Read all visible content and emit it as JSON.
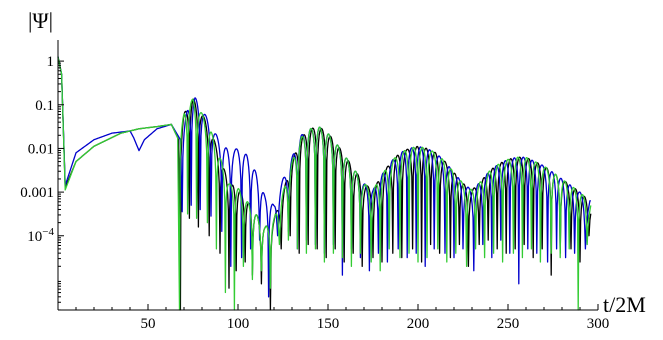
{
  "chart_data": {
    "type": "line",
    "title": "",
    "xlabel": "t/2M",
    "ylabel": "|Ψ|",
    "xlim": [
      0,
      300
    ],
    "ylim_log10": [
      -5.7,
      0.3
    ],
    "yscale": "log",
    "grid": false,
    "legend": "none",
    "x_ticks": [
      {
        "value": 50,
        "label": "50"
      },
      {
        "value": 100,
        "label": "100"
      },
      {
        "value": 150,
        "label": "150"
      },
      {
        "value": 200,
        "label": "200"
      },
      {
        "value": 250,
        "label": "250"
      },
      {
        "value": 300,
        "label": "300"
      }
    ],
    "y_ticks": [
      {
        "log10": 0,
        "label": "1"
      },
      {
        "log10": -1,
        "label": "0.1"
      },
      {
        "log10": -2,
        "label": "0.01"
      },
      {
        "log10": -3,
        "label": "0.001"
      },
      {
        "log10": -4,
        "label": "10^-4"
      }
    ],
    "series": [
      {
        "color": "#000000",
        "envelope": [
          [
            0,
            0.1
          ],
          [
            2,
            -0.3
          ],
          [
            4,
            -2.9
          ],
          [
            10,
            -2.3
          ],
          [
            20,
            -1.95
          ],
          [
            35,
            -1.65
          ],
          [
            45,
            -1.55
          ],
          [
            55,
            -1.5
          ],
          [
            63,
            -1.45
          ],
          [
            67,
            -1.8
          ],
          [
            70,
            -1.2
          ],
          [
            75,
            -0.85
          ],
          [
            80,
            -1.2
          ],
          [
            85,
            -1.6
          ],
          [
            90,
            -2.2
          ],
          [
            95,
            -2.8
          ],
          [
            100,
            -2.9
          ],
          [
            105,
            -3.2
          ],
          [
            110,
            -3.5
          ],
          [
            115,
            -3.8
          ],
          [
            120,
            -3.6
          ],
          [
            125,
            -3.0
          ],
          [
            130,
            -2.3
          ],
          [
            135,
            -1.75
          ],
          [
            140,
            -1.55
          ],
          [
            145,
            -1.5
          ],
          [
            150,
            -1.65
          ],
          [
            155,
            -1.9
          ],
          [
            160,
            -2.2
          ],
          [
            165,
            -2.5
          ],
          [
            170,
            -2.8
          ],
          [
            175,
            -2.95
          ],
          [
            180,
            -2.6
          ],
          [
            185,
            -2.3
          ],
          [
            190,
            -2.1
          ],
          [
            195,
            -2.0
          ],
          [
            200,
            -1.95
          ],
          [
            205,
            -2.0
          ],
          [
            210,
            -2.1
          ],
          [
            215,
            -2.3
          ],
          [
            220,
            -2.55
          ],
          [
            225,
            -2.8
          ],
          [
            230,
            -2.95
          ],
          [
            235,
            -2.75
          ],
          [
            240,
            -2.5
          ],
          [
            245,
            -2.35
          ],
          [
            250,
            -2.25
          ],
          [
            255,
            -2.2
          ],
          [
            260,
            -2.2
          ],
          [
            265,
            -2.3
          ],
          [
            270,
            -2.4
          ],
          [
            275,
            -2.55
          ],
          [
            280,
            -2.7
          ],
          [
            285,
            -2.85
          ],
          [
            290,
            -3.0
          ],
          [
            295,
            -3.2
          ]
        ],
        "minima": [
          [
            68,
            -6
          ],
          [
            73,
            -3.6
          ],
          [
            78,
            -3.8
          ],
          [
            84,
            -4.0
          ],
          [
            90,
            -4.4
          ],
          [
            95,
            -5.2
          ],
          [
            99,
            -4.8
          ],
          [
            104,
            -4.6
          ],
          [
            108,
            -4.9
          ],
          [
            113,
            -5.1
          ],
          [
            118,
            -6
          ],
          [
            124,
            -4.3
          ],
          [
            129,
            -4.0
          ],
          [
            134,
            -4.4
          ],
          [
            139,
            -4.2
          ],
          [
            144,
            -4.3
          ],
          [
            149,
            -4.5
          ],
          [
            154,
            -4.3
          ],
          [
            159,
            -4.6
          ],
          [
            164,
            -4.4
          ],
          [
            169,
            -4.7
          ],
          [
            175,
            -4.5
          ],
          [
            180,
            -4.6
          ],
          [
            186,
            -4.4
          ],
          [
            191,
            -4.5
          ],
          [
            197,
            -4.3
          ],
          [
            202,
            -4.6
          ],
          [
            207,
            -4.2
          ],
          [
            212,
            -4.4
          ],
          [
            218,
            -4.5
          ],
          [
            223,
            -4.2
          ],
          [
            228,
            -4.7
          ],
          [
            234,
            -4.2
          ],
          [
            239,
            -4.1
          ],
          [
            244,
            -4.3
          ],
          [
            249,
            -4.4
          ],
          [
            254,
            -4.3
          ],
          [
            259,
            -4.2
          ],
          [
            264,
            -4.5
          ],
          [
            269,
            -4.3
          ],
          [
            274,
            -4.9
          ],
          [
            279,
            -4.4
          ],
          [
            285,
            -4.3
          ],
          [
            290,
            -4.6
          ],
          [
            295,
            -4.0
          ]
        ]
      },
      {
        "color": "#0000cc",
        "envelope": [
          [
            0,
            0.1
          ],
          [
            2,
            -0.3
          ],
          [
            4,
            -2.85
          ],
          [
            10,
            -2.1
          ],
          [
            20,
            -1.8
          ],
          [
            30,
            -1.65
          ],
          [
            40,
            -1.6
          ],
          [
            42,
            -1.75
          ],
          [
            45,
            -2.05
          ],
          [
            48,
            -1.8
          ],
          [
            55,
            -1.55
          ],
          [
            63,
            -1.45
          ],
          [
            68,
            -1.8
          ],
          [
            72,
            -1.1
          ],
          [
            76,
            -0.82
          ],
          [
            80,
            -1.1
          ],
          [
            85,
            -1.45
          ],
          [
            90,
            -1.85
          ],
          [
            95,
            -2.05
          ],
          [
            100,
            -2.0
          ],
          [
            105,
            -2.15
          ],
          [
            110,
            -2.55
          ],
          [
            115,
            -3.1
          ],
          [
            120,
            -3.3
          ],
          [
            125,
            -2.7
          ],
          [
            130,
            -2.2
          ],
          [
            135,
            -1.7
          ],
          [
            140,
            -1.55
          ],
          [
            145,
            -1.5
          ],
          [
            150,
            -1.65
          ],
          [
            155,
            -1.9
          ],
          [
            160,
            -2.2
          ],
          [
            165,
            -2.5
          ],
          [
            170,
            -2.8
          ],
          [
            175,
            -2.95
          ],
          [
            180,
            -2.6
          ],
          [
            185,
            -2.3
          ],
          [
            190,
            -2.1
          ],
          [
            195,
            -2.0
          ],
          [
            200,
            -1.95
          ],
          [
            205,
            -2.0
          ],
          [
            210,
            -2.1
          ],
          [
            215,
            -2.3
          ],
          [
            220,
            -2.55
          ],
          [
            225,
            -2.8
          ],
          [
            230,
            -2.95
          ],
          [
            235,
            -2.75
          ],
          [
            240,
            -2.5
          ],
          [
            245,
            -2.35
          ],
          [
            250,
            -2.25
          ],
          [
            255,
            -2.2
          ],
          [
            260,
            -2.2
          ],
          [
            265,
            -2.3
          ],
          [
            270,
            -2.4
          ],
          [
            275,
            -2.55
          ],
          [
            280,
            -2.7
          ],
          [
            285,
            -2.85
          ],
          [
            290,
            -3.0
          ],
          [
            295,
            -3.2
          ]
        ],
        "minima": [
          [
            69,
            -3.45
          ],
          [
            74,
            -3.3
          ],
          [
            79,
            -3.4
          ],
          [
            85,
            -3.55
          ],
          [
            91,
            -3.9
          ],
          [
            96,
            -4.7
          ],
          [
            102,
            -4.5
          ],
          [
            107,
            -4.3
          ],
          [
            112,
            -4.1
          ],
          [
            117,
            -5.4
          ],
          [
            122,
            -4.0
          ],
          [
            128,
            -3.9
          ],
          [
            133,
            -4.3
          ],
          [
            138,
            -4.1
          ],
          [
            143,
            -4.2
          ],
          [
            148,
            -4.4
          ],
          [
            153,
            -4.2
          ],
          [
            158,
            -4.9
          ],
          [
            163,
            -4.3
          ],
          [
            168,
            -4.5
          ],
          [
            173,
            -4.8
          ],
          [
            178,
            -4.4
          ],
          [
            183,
            -4.6
          ],
          [
            189,
            -4.3
          ],
          [
            194,
            -4.5
          ],
          [
            199,
            -4.4
          ],
          [
            204,
            -4.7
          ],
          [
            209,
            -4.3
          ],
          [
            215,
            -4.4
          ],
          [
            220,
            -4.5
          ],
          [
            225,
            -4.3
          ],
          [
            231,
            -4.8
          ],
          [
            236,
            -4.2
          ],
          [
            241,
            -4.5
          ],
          [
            246,
            -4.1
          ],
          [
            251,
            -4.4
          ],
          [
            256,
            -5.1
          ],
          [
            261,
            -4.3
          ],
          [
            266,
            -4.4
          ],
          [
            272,
            -4.6
          ],
          [
            277,
            -4.3
          ],
          [
            282,
            -4.5
          ],
          [
            287,
            -4.4
          ],
          [
            293,
            -4.3
          ]
        ]
      },
      {
        "color": "#33cc33",
        "envelope": [
          [
            0,
            0.1
          ],
          [
            2,
            -0.3
          ],
          [
            4,
            -2.95
          ],
          [
            10,
            -2.3
          ],
          [
            20,
            -1.95
          ],
          [
            35,
            -1.65
          ],
          [
            45,
            -1.55
          ],
          [
            55,
            -1.5
          ],
          [
            63,
            -1.45
          ],
          [
            67,
            -1.8
          ],
          [
            70,
            -1.2
          ],
          [
            75,
            -0.85
          ],
          [
            80,
            -1.2
          ],
          [
            85,
            -1.6
          ],
          [
            90,
            -2.2
          ],
          [
            95,
            -2.8
          ],
          [
            100,
            -2.9
          ],
          [
            105,
            -3.2
          ],
          [
            110,
            -3.5
          ],
          [
            115,
            -3.8
          ],
          [
            120,
            -3.6
          ],
          [
            125,
            -3.0
          ],
          [
            130,
            -2.3
          ],
          [
            135,
            -1.75
          ],
          [
            140,
            -1.55
          ],
          [
            145,
            -1.5
          ],
          [
            150,
            -1.65
          ],
          [
            155,
            -1.9
          ],
          [
            160,
            -2.2
          ],
          [
            165,
            -2.5
          ],
          [
            170,
            -2.8
          ],
          [
            175,
            -2.95
          ],
          [
            180,
            -2.6
          ],
          [
            185,
            -2.3
          ],
          [
            190,
            -2.1
          ],
          [
            195,
            -2.0
          ],
          [
            200,
            -1.95
          ],
          [
            205,
            -2.0
          ],
          [
            210,
            -2.1
          ],
          [
            215,
            -2.3
          ],
          [
            220,
            -2.55
          ],
          [
            225,
            -2.8
          ],
          [
            230,
            -2.95
          ],
          [
            235,
            -2.75
          ],
          [
            240,
            -2.5
          ],
          [
            245,
            -2.35
          ],
          [
            250,
            -2.25
          ],
          [
            255,
            -2.2
          ],
          [
            260,
            -2.2
          ],
          [
            265,
            -2.3
          ],
          [
            270,
            -2.4
          ],
          [
            275,
            -2.55
          ],
          [
            280,
            -2.7
          ],
          [
            285,
            -2.85
          ],
          [
            290,
            -3.0
          ],
          [
            295,
            -3.2
          ]
        ],
        "minima": [
          [
            67.5,
            -6
          ],
          [
            72,
            -3.5
          ],
          [
            77,
            -3.6
          ],
          [
            83,
            -3.7
          ],
          [
            88,
            -4.3
          ],
          [
            93,
            -5.3
          ],
          [
            98,
            -6
          ],
          [
            103,
            -4.7
          ],
          [
            108,
            -5.0
          ],
          [
            113,
            -4.8
          ],
          [
            118,
            -5.2
          ],
          [
            123,
            -4.2
          ],
          [
            128,
            -4.1
          ],
          [
            133,
            -4.3
          ],
          [
            138,
            -4.4
          ],
          [
            143,
            -4.3
          ],
          [
            148,
            -4.6
          ],
          [
            153,
            -4.4
          ],
          [
            158,
            -4.5
          ],
          [
            163,
            -4.7
          ],
          [
            168,
            -4.4
          ],
          [
            174,
            -4.6
          ],
          [
            179,
            -4.8
          ],
          [
            184,
            -4.3
          ],
          [
            190,
            -4.5
          ],
          [
            195,
            -4.4
          ],
          [
            200,
            -4.6
          ],
          [
            205,
            -4.5
          ],
          [
            211,
            -4.3
          ],
          [
            216,
            -4.6
          ],
          [
            221,
            -4.4
          ],
          [
            227,
            -4.7
          ],
          [
            232,
            -4.3
          ],
          [
            237,
            -4.5
          ],
          [
            242,
            -4.4
          ],
          [
            247,
            -4.6
          ],
          [
            253,
            -4.4
          ],
          [
            258,
            -4.5
          ],
          [
            263,
            -4.3
          ],
          [
            268,
            -4.6
          ],
          [
            274,
            -4.4
          ],
          [
            279,
            -4.5
          ],
          [
            284,
            -4.3
          ],
          [
            289,
            -6
          ],
          [
            294,
            -4.2
          ]
        ]
      }
    ]
  }
}
